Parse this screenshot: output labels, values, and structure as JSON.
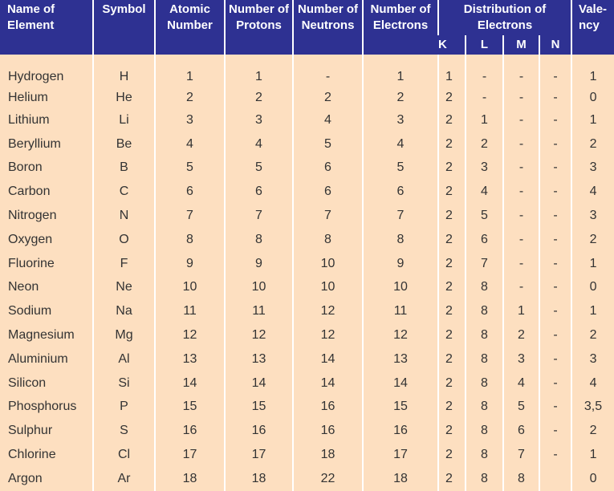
{
  "headers": {
    "name": "Name of Element",
    "symbol": "Symbol",
    "atomic": "Atomic Number",
    "protons": "Number of Protons",
    "neutrons": "Number of Neutrons",
    "electrons": "Number of Electrons",
    "distribution": "Distribution of Electrons",
    "valency": "Vale-ncy",
    "shells": [
      "K",
      "L",
      "M",
      "N"
    ]
  },
  "colors": {
    "header": "#2e3192",
    "body": "#fddfc0"
  },
  "rows": [
    [
      "Hydrogen",
      "H",
      "1",
      "1",
      "-",
      "1",
      "1",
      "-",
      "-",
      "-",
      "1"
    ],
    [
      "Helium",
      "He",
      "2",
      "2",
      "2",
      "2",
      "2",
      "-",
      "-",
      "-",
      "0"
    ],
    [
      "Lithium",
      "Li",
      "3",
      "3",
      "4",
      "3",
      "2",
      "1",
      "-",
      "-",
      "1"
    ],
    [
      "Beryllium",
      "Be",
      "4",
      "4",
      "5",
      "4",
      "2",
      "2",
      "-",
      "-",
      "2"
    ],
    [
      "Boron",
      "B",
      "5",
      "5",
      "6",
      "5",
      "2",
      "3",
      "-",
      "-",
      "3"
    ],
    [
      "Carbon",
      "C",
      "6",
      "6",
      "6",
      "6",
      "2",
      "4",
      "-",
      "-",
      "4"
    ],
    [
      "Nitrogen",
      "N",
      "7",
      "7",
      "7",
      "7",
      "2",
      "5",
      "-",
      "-",
      "3"
    ],
    [
      "Oxygen",
      "O",
      "8",
      "8",
      "8",
      "8",
      "2",
      "6",
      "-",
      "-",
      "2"
    ],
    [
      "Fluorine",
      "F",
      "9",
      "9",
      "10",
      "9",
      "2",
      "7",
      "-",
      "-",
      "1"
    ],
    [
      "Neon",
      "Ne",
      "10",
      "10",
      "10",
      "10",
      "2",
      "8",
      "-",
      "-",
      "0"
    ],
    [
      "Sodium",
      "Na",
      "11",
      "11",
      "12",
      "11",
      "2",
      "8",
      "1",
      "-",
      "1"
    ],
    [
      "Magnesium",
      "Mg",
      "12",
      "12",
      "12",
      "12",
      "2",
      "8",
      "2",
      "-",
      "2"
    ],
    [
      "Aluminium",
      "Al",
      "13",
      "13",
      "14",
      "13",
      "2",
      "8",
      "3",
      "-",
      "3"
    ],
    [
      "Silicon",
      "Si",
      "14",
      "14",
      "14",
      "14",
      "2",
      "8",
      "4",
      "-",
      "4"
    ],
    [
      "Phosphorus",
      "P",
      "15",
      "15",
      "16",
      "15",
      "2",
      "8",
      "5",
      "-",
      "3,5"
    ],
    [
      "Sulphur",
      "S",
      "16",
      "16",
      "16",
      "16",
      "2",
      "8",
      "6",
      "-",
      "2"
    ],
    [
      "Chlorine",
      "Cl",
      "17",
      "17",
      "18",
      "17",
      "2",
      "8",
      "7",
      "-",
      "1"
    ],
    [
      "Argon",
      "Ar",
      "18",
      "18",
      "22",
      "18",
      "2",
      "8",
      "8",
      "",
      "0"
    ]
  ]
}
